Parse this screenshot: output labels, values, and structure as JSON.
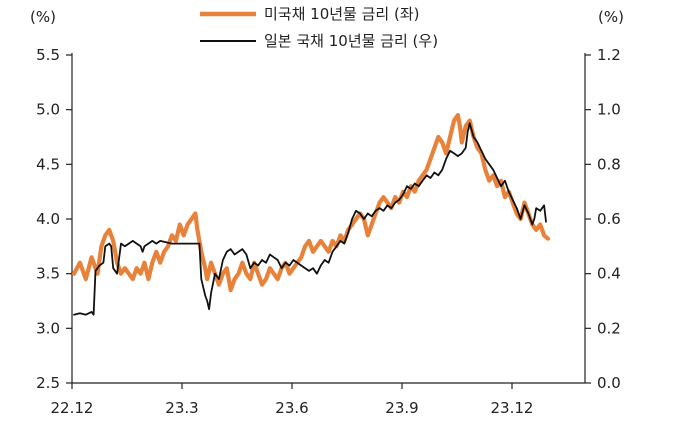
{
  "chart_data": {
    "type": "line",
    "left_unit": "(%)",
    "right_unit": "(%)",
    "left_axis": {
      "ylim": [
        2.5,
        5.5
      ],
      "ticks": [
        "2.5",
        "3.0",
        "3.5",
        "4.0",
        "4.5",
        "5.0",
        "5.5"
      ]
    },
    "right_axis": {
      "ylim": [
        0.0,
        1.2
      ],
      "ticks": [
        "0.0",
        "0.2",
        "0.4",
        "0.6",
        "0.8",
        "1.0",
        "1.2"
      ]
    },
    "x_ticks": [
      "22.12",
      "23.3",
      "23.6",
      "23.9",
      "23.12"
    ],
    "legend_placement": "top-center",
    "series": [
      {
        "name": "미국채 10년물 금리 (좌)",
        "axis": "left",
        "color": "#e8823a",
        "points": [
          [
            0,
            3.5
          ],
          [
            3,
            3.6
          ],
          [
            6,
            3.45
          ],
          [
            9,
            3.65
          ],
          [
            12,
            3.5
          ],
          [
            14,
            3.75
          ],
          [
            16,
            3.85
          ],
          [
            18,
            3.9
          ],
          [
            20,
            3.8
          ],
          [
            22,
            3.6
          ],
          [
            24,
            3.5
          ],
          [
            26,
            3.55
          ],
          [
            28,
            3.5
          ],
          [
            30,
            3.45
          ],
          [
            32,
            3.55
          ],
          [
            34,
            3.5
          ],
          [
            36,
            3.6
          ],
          [
            38,
            3.45
          ],
          [
            40,
            3.6
          ],
          [
            42,
            3.7
          ],
          [
            44,
            3.6
          ],
          [
            46,
            3.7
          ],
          [
            48,
            3.75
          ],
          [
            50,
            3.85
          ],
          [
            52,
            3.8
          ],
          [
            54,
            3.95
          ],
          [
            56,
            3.85
          ],
          [
            58,
            3.95
          ],
          [
            60,
            4.0
          ],
          [
            62,
            4.05
          ],
          [
            63,
            3.9
          ],
          [
            65,
            3.7
          ],
          [
            67,
            3.55
          ],
          [
            68,
            3.45
          ],
          [
            70,
            3.6
          ],
          [
            72,
            3.5
          ],
          [
            74,
            3.4
          ],
          [
            76,
            3.5
          ],
          [
            78,
            3.55
          ],
          [
            80,
            3.35
          ],
          [
            82,
            3.45
          ],
          [
            84,
            3.5
          ],
          [
            86,
            3.6
          ],
          [
            88,
            3.5
          ],
          [
            90,
            3.45
          ],
          [
            92,
            3.6
          ],
          [
            94,
            3.5
          ],
          [
            96,
            3.4
          ],
          [
            98,
            3.45
          ],
          [
            100,
            3.55
          ],
          [
            102,
            3.5
          ],
          [
            104,
            3.45
          ],
          [
            106,
            3.55
          ],
          [
            108,
            3.6
          ],
          [
            110,
            3.5
          ],
          [
            112,
            3.55
          ],
          [
            114,
            3.6
          ],
          [
            116,
            3.65
          ],
          [
            118,
            3.75
          ],
          [
            120,
            3.8
          ],
          [
            122,
            3.7
          ],
          [
            124,
            3.75
          ],
          [
            126,
            3.8
          ],
          [
            128,
            3.75
          ],
          [
            130,
            3.7
          ],
          [
            132,
            3.8
          ],
          [
            134,
            3.75
          ],
          [
            136,
            3.85
          ],
          [
            138,
            3.8
          ],
          [
            140,
            3.9
          ],
          [
            142,
            3.95
          ],
          [
            144,
            4.0
          ],
          [
            146,
            4.05
          ],
          [
            148,
            4.0
          ],
          [
            150,
            3.85
          ],
          [
            152,
            3.95
          ],
          [
            154,
            4.05
          ],
          [
            156,
            4.15
          ],
          [
            158,
            4.2
          ],
          [
            160,
            4.15
          ],
          [
            162,
            4.1
          ],
          [
            164,
            4.2
          ],
          [
            166,
            4.15
          ],
          [
            168,
            4.25
          ],
          [
            170,
            4.2
          ],
          [
            172,
            4.3
          ],
          [
            174,
            4.25
          ],
          [
            176,
            4.35
          ],
          [
            178,
            4.4
          ],
          [
            180,
            4.45
          ],
          [
            182,
            4.55
          ],
          [
            184,
            4.65
          ],
          [
            186,
            4.75
          ],
          [
            188,
            4.7
          ],
          [
            190,
            4.6
          ],
          [
            192,
            4.75
          ],
          [
            194,
            4.9
          ],
          [
            196,
            4.95
          ],
          [
            197,
            4.85
          ],
          [
            198,
            4.7
          ],
          [
            200,
            4.85
          ],
          [
            202,
            4.9
          ],
          [
            204,
            4.75
          ],
          [
            206,
            4.65
          ],
          [
            208,
            4.6
          ],
          [
            210,
            4.45
          ],
          [
            212,
            4.35
          ],
          [
            214,
            4.4
          ],
          [
            216,
            4.3
          ],
          [
            218,
            4.35
          ],
          [
            220,
            4.2
          ],
          [
            222,
            4.25
          ],
          [
            224,
            4.15
          ],
          [
            226,
            4.05
          ],
          [
            228,
            4.0
          ],
          [
            230,
            4.15
          ],
          [
            232,
            4.05
          ],
          [
            234,
            3.95
          ],
          [
            236,
            3.9
          ],
          [
            238,
            3.95
          ],
          [
            240,
            3.85
          ],
          [
            242,
            3.82
          ]
        ]
      },
      {
        "name": "일본 국채 10년물 금리 (우)",
        "axis": "right",
        "color": "#111111",
        "points": [
          [
            0,
            0.25
          ],
          [
            3,
            0.255
          ],
          [
            6,
            0.25
          ],
          [
            9,
            0.26
          ],
          [
            10,
            0.25
          ],
          [
            11,
            0.41
          ],
          [
            13,
            0.43
          ],
          [
            15,
            0.44
          ],
          [
            16,
            0.5
          ],
          [
            18,
            0.51
          ],
          [
            19,
            0.5
          ],
          [
            20,
            0.42
          ],
          [
            22,
            0.4
          ],
          [
            24,
            0.51
          ],
          [
            26,
            0.5
          ],
          [
            28,
            0.51
          ],
          [
            30,
            0.52
          ],
          [
            32,
            0.51
          ],
          [
            34,
            0.5
          ],
          [
            35,
            0.48
          ],
          [
            36,
            0.5
          ],
          [
            38,
            0.51
          ],
          [
            40,
            0.52
          ],
          [
            42,
            0.51
          ],
          [
            44,
            0.52
          ],
          [
            50,
            0.51
          ],
          [
            60,
            0.51
          ],
          [
            64,
            0.51
          ],
          [
            65,
            0.38
          ],
          [
            67,
            0.32
          ],
          [
            68,
            0.3
          ],
          [
            69,
            0.27
          ],
          [
            70,
            0.33
          ],
          [
            72,
            0.4
          ],
          [
            74,
            0.38
          ],
          [
            76,
            0.45
          ],
          [
            78,
            0.48
          ],
          [
            80,
            0.49
          ],
          [
            82,
            0.47
          ],
          [
            84,
            0.48
          ],
          [
            86,
            0.49
          ],
          [
            88,
            0.47
          ],
          [
            90,
            0.42
          ],
          [
            92,
            0.44
          ],
          [
            94,
            0.43
          ],
          [
            96,
            0.45
          ],
          [
            98,
            0.44
          ],
          [
            100,
            0.47
          ],
          [
            102,
            0.46
          ],
          [
            104,
            0.45
          ],
          [
            106,
            0.42
          ],
          [
            108,
            0.44
          ],
          [
            110,
            0.43
          ],
          [
            112,
            0.45
          ],
          [
            114,
            0.44
          ],
          [
            116,
            0.43
          ],
          [
            118,
            0.42
          ],
          [
            120,
            0.41
          ],
          [
            122,
            0.42
          ],
          [
            124,
            0.4
          ],
          [
            126,
            0.43
          ],
          [
            128,
            0.45
          ],
          [
            130,
            0.44
          ],
          [
            132,
            0.48
          ],
          [
            134,
            0.5
          ],
          [
            136,
            0.52
          ],
          [
            138,
            0.51
          ],
          [
            140,
            0.55
          ],
          [
            142,
            0.6
          ],
          [
            144,
            0.63
          ],
          [
            146,
            0.62
          ],
          [
            148,
            0.6
          ],
          [
            150,
            0.62
          ],
          [
            152,
            0.61
          ],
          [
            154,
            0.63
          ],
          [
            156,
            0.64
          ],
          [
            158,
            0.63
          ],
          [
            160,
            0.65
          ],
          [
            162,
            0.64
          ],
          [
            164,
            0.66
          ],
          [
            166,
            0.67
          ],
          [
            168,
            0.69
          ],
          [
            170,
            0.72
          ],
          [
            172,
            0.71
          ],
          [
            174,
            0.73
          ],
          [
            176,
            0.72
          ],
          [
            178,
            0.74
          ],
          [
            180,
            0.76
          ],
          [
            182,
            0.75
          ],
          [
            184,
            0.77
          ],
          [
            186,
            0.76
          ],
          [
            188,
            0.78
          ],
          [
            190,
            0.82
          ],
          [
            192,
            0.85
          ],
          [
            194,
            0.84
          ],
          [
            196,
            0.83
          ],
          [
            198,
            0.84
          ],
          [
            200,
            0.86
          ],
          [
            201,
            0.92
          ],
          [
            202,
            0.95
          ],
          [
            204,
            0.9
          ],
          [
            206,
            0.88
          ],
          [
            208,
            0.85
          ],
          [
            210,
            0.82
          ],
          [
            212,
            0.8
          ],
          [
            214,
            0.78
          ],
          [
            216,
            0.75
          ],
          [
            218,
            0.72
          ],
          [
            220,
            0.74
          ],
          [
            222,
            0.7
          ],
          [
            224,
            0.67
          ],
          [
            226,
            0.64
          ],
          [
            228,
            0.6
          ],
          [
            230,
            0.65
          ],
          [
            232,
            0.62
          ],
          [
            234,
            0.58
          ],
          [
            235,
            0.6
          ],
          [
            236,
            0.64
          ],
          [
            238,
            0.63
          ],
          [
            240,
            0.65
          ],
          [
            241,
            0.59
          ]
        ]
      }
    ]
  }
}
